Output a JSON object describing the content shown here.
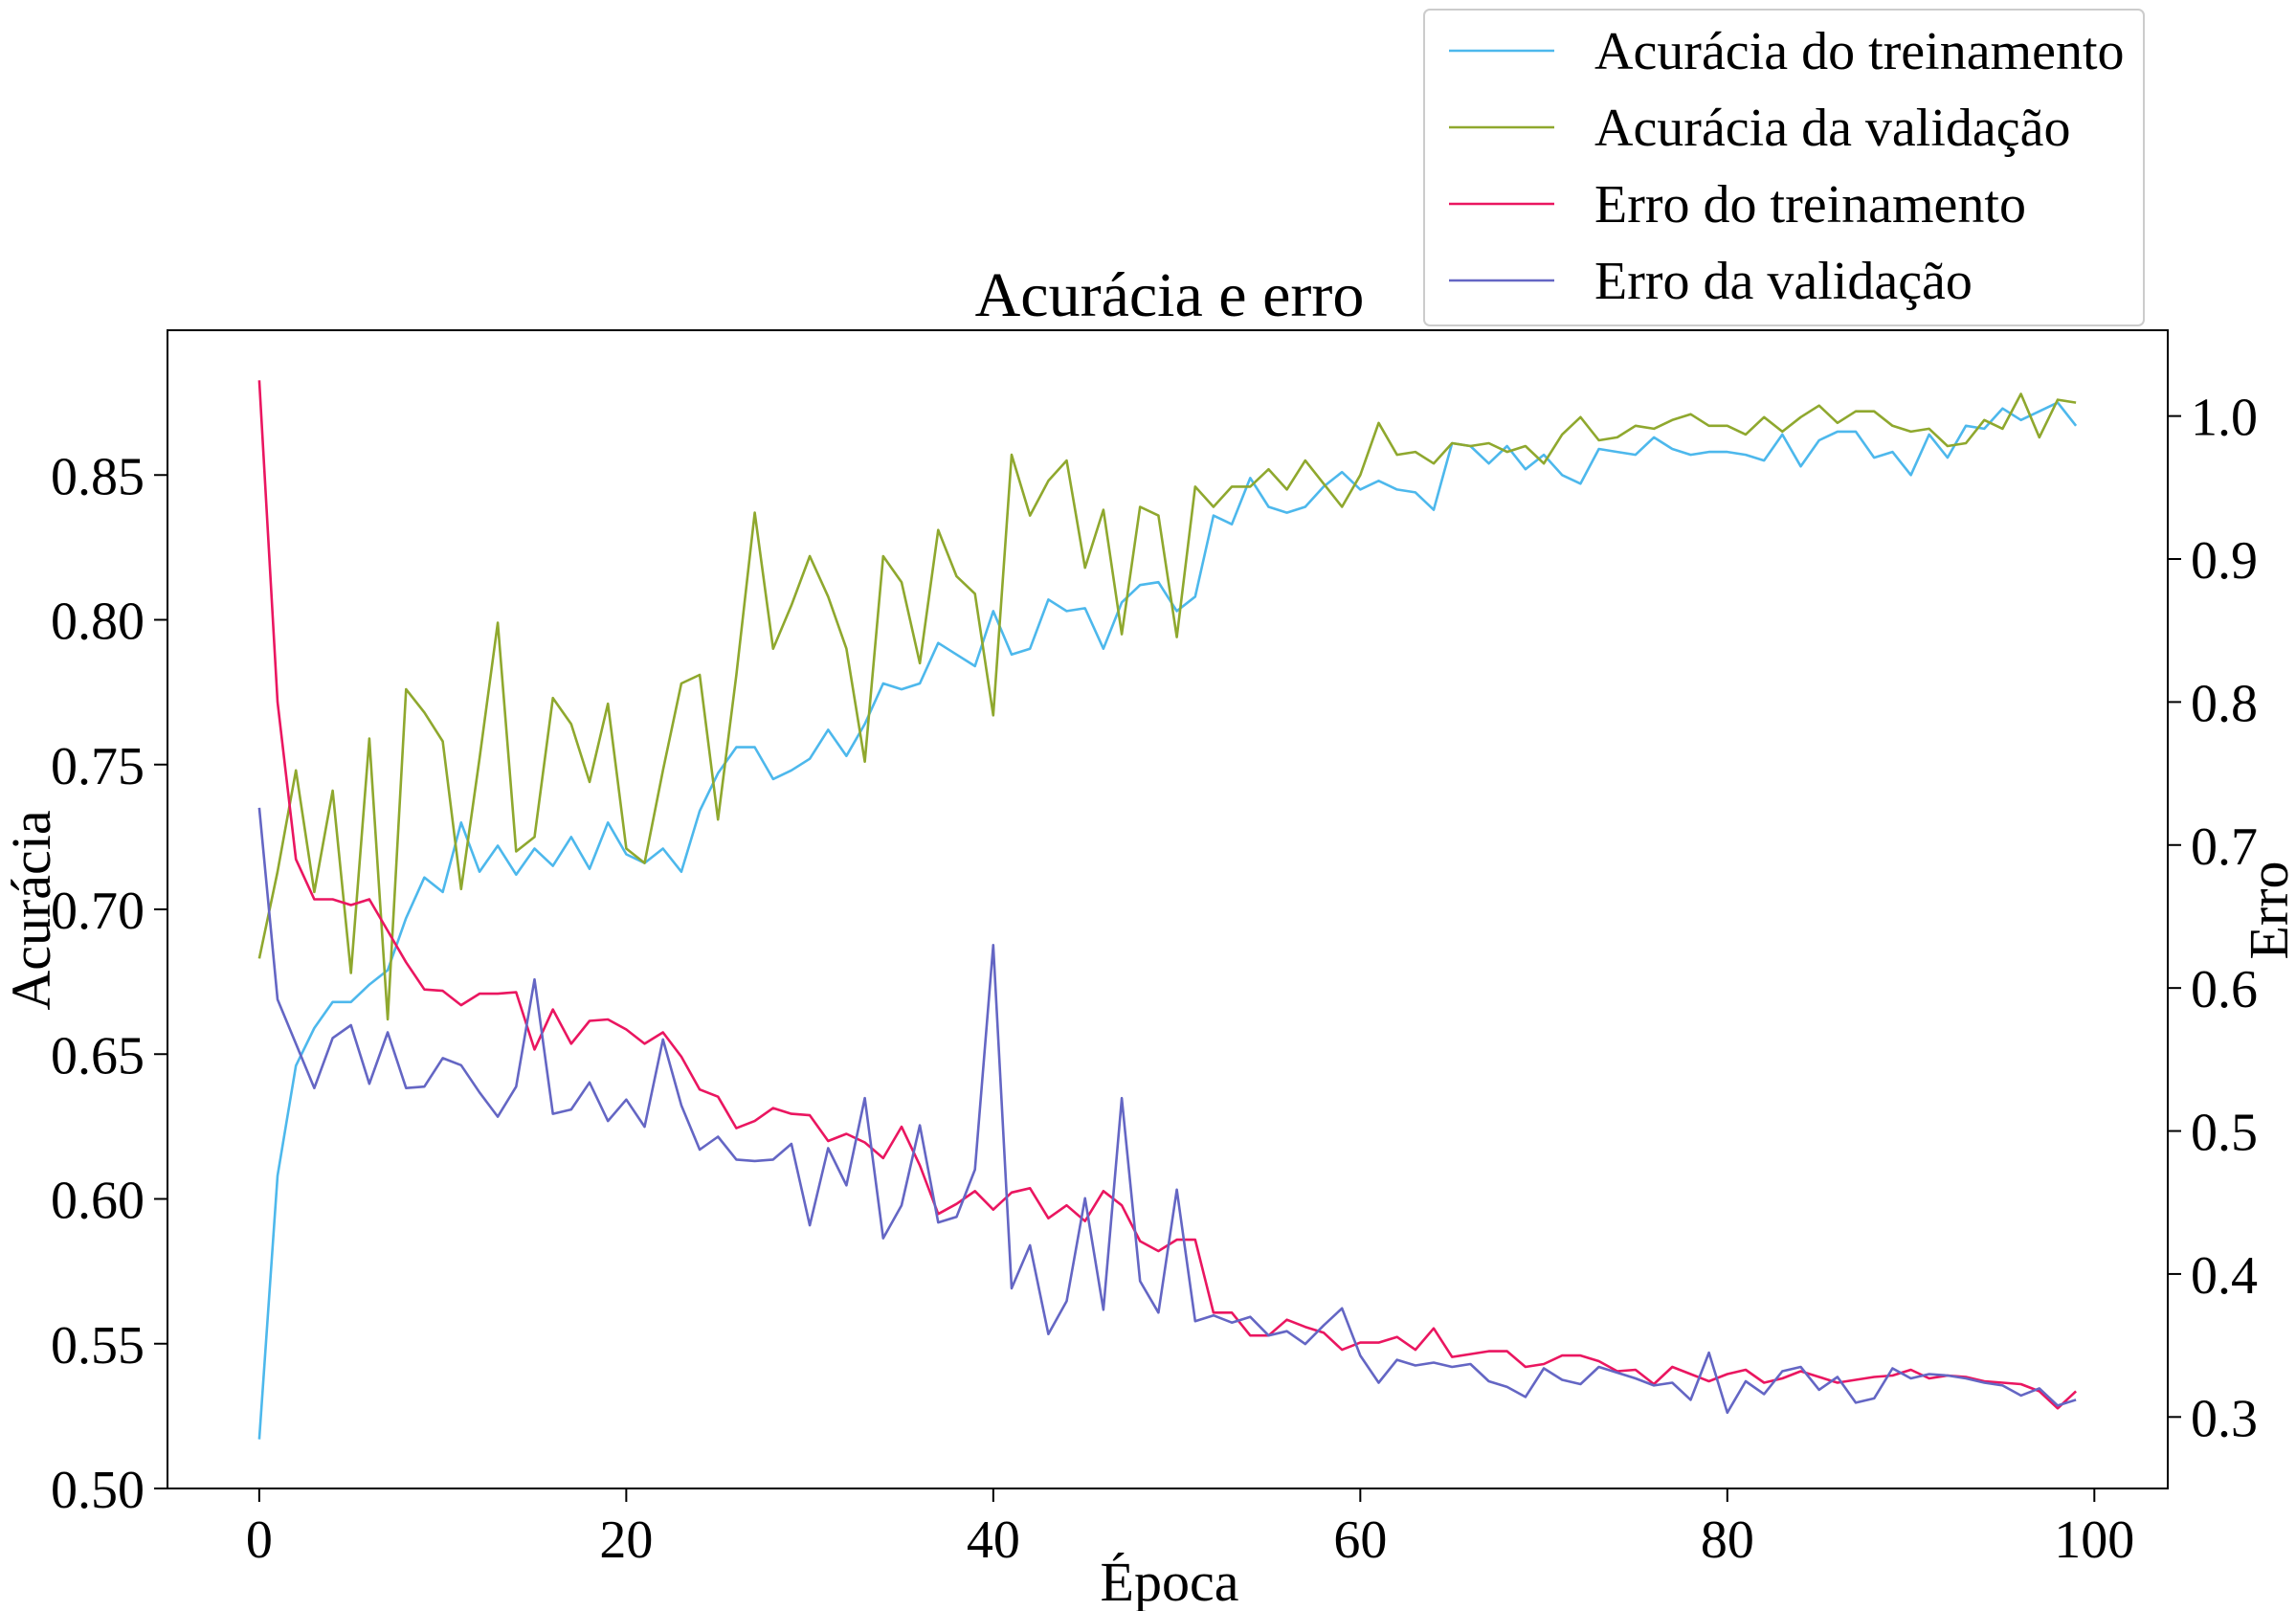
{
  "chart_data": {
    "type": "line",
    "title": "Acurácia e erro",
    "xlabel": "Época",
    "ylabel": "Acurácia",
    "y2label": "Erro",
    "xlim": [
      -5,
      104
    ],
    "ylim": [
      0.5,
      0.9
    ],
    "y2lim": [
      0.25,
      1.06
    ],
    "xticks": [
      0,
      20,
      40,
      60,
      80,
      100
    ],
    "yticks": [
      0.5,
      0.55,
      0.6,
      0.65,
      0.7,
      0.75,
      0.8,
      0.85
    ],
    "y2ticks": [
      0.3,
      0.4,
      0.5,
      0.6,
      0.7,
      0.8,
      0.9,
      1.0
    ],
    "grid": false,
    "legend_position": "top-right",
    "series": [
      {
        "name": "Acurácia do treinamento",
        "axis": "left",
        "color": "#4db8ec",
        "values": [
          0.517,
          0.608,
          0.646,
          0.659,
          0.668,
          0.668,
          0.674,
          0.679,
          0.697,
          0.711,
          0.706,
          0.73,
          0.713,
          0.722,
          0.712,
          0.721,
          0.715,
          0.725,
          0.714,
          0.73,
          0.719,
          0.716,
          0.721,
          0.713,
          0.734,
          0.747,
          0.756,
          0.756,
          0.745,
          0.748,
          0.752,
          0.762,
          0.753,
          0.764,
          0.778,
          0.776,
          0.778,
          0.792,
          0.788,
          0.784,
          0.803,
          0.788,
          0.79,
          0.807,
          0.803,
          0.804,
          0.79,
          0.806,
          0.812,
          0.813,
          0.803,
          0.808,
          0.836,
          0.833,
          0.849,
          0.839,
          0.837,
          0.839,
          0.846,
          0.851,
          0.845,
          0.848,
          0.845,
          0.844,
          0.838,
          0.861,
          0.86,
          0.854,
          0.86,
          0.852,
          0.857,
          0.85,
          0.847,
          0.859,
          0.858,
          0.857,
          0.863,
          0.859,
          0.857,
          0.858,
          0.858,
          0.857,
          0.855,
          0.864,
          0.853,
          0.862,
          0.865,
          0.865,
          0.856,
          0.858,
          0.85,
          0.864,
          0.856,
          0.867,
          0.866,
          0.873,
          0.869,
          0.872,
          0.875,
          0.867
        ]
      },
      {
        "name": "Acurácia da validação",
        "axis": "left",
        "color": "#8fa82e",
        "values": [
          0.683,
          0.713,
          0.748,
          0.706,
          0.741,
          0.678,
          0.759,
          0.662,
          0.776,
          0.768,
          0.758,
          0.707,
          0.752,
          0.799,
          0.72,
          0.725,
          0.773,
          0.764,
          0.744,
          0.771,
          0.721,
          0.716,
          0.748,
          0.778,
          0.781,
          0.731,
          0.781,
          0.837,
          0.79,
          0.805,
          0.822,
          0.808,
          0.79,
          0.751,
          0.822,
          0.813,
          0.785,
          0.831,
          0.815,
          0.809,
          0.767,
          0.857,
          0.836,
          0.848,
          0.855,
          0.818,
          0.838,
          0.795,
          0.839,
          0.836,
          0.794,
          0.846,
          0.839,
          0.846,
          0.846,
          0.852,
          0.845,
          0.855,
          0.847,
          0.839,
          0.85,
          0.868,
          0.857,
          0.858,
          0.854,
          0.861,
          0.86,
          0.861,
          0.858,
          0.86,
          0.854,
          0.864,
          0.87,
          0.862,
          0.863,
          0.867,
          0.866,
          0.869,
          0.871,
          0.867,
          0.867,
          0.864,
          0.87,
          0.865,
          0.87,
          0.874,
          0.868,
          0.872,
          0.872,
          0.867,
          0.865,
          0.866,
          0.86,
          0.861,
          0.869,
          0.866,
          0.878,
          0.863,
          0.876,
          0.875
        ]
      },
      {
        "name": "Erro do treinamento",
        "axis": "right",
        "color": "#ea1660",
        "values": [
          1.025,
          0.8,
          0.69,
          0.662,
          0.662,
          0.658,
          0.662,
          0.64,
          0.618,
          0.599,
          0.598,
          0.588,
          0.596,
          0.596,
          0.597,
          0.557,
          0.585,
          0.561,
          0.577,
          0.578,
          0.571,
          0.561,
          0.569,
          0.552,
          0.529,
          0.524,
          0.502,
          0.507,
          0.516,
          0.512,
          0.511,
          0.493,
          0.498,
          0.492,
          0.481,
          0.503,
          0.476,
          0.442,
          0.449,
          0.458,
          0.445,
          0.457,
          0.46,
          0.439,
          0.448,
          0.437,
          0.458,
          0.448,
          0.423,
          0.416,
          0.424,
          0.424,
          0.373,
          0.373,
          0.357,
          0.357,
          0.368,
          0.363,
          0.359,
          0.347,
          0.352,
          0.352,
          0.356,
          0.347,
          0.362,
          0.342,
          0.344,
          0.346,
          0.346,
          0.335,
          0.337,
          0.343,
          0.343,
          0.339,
          0.332,
          0.333,
          0.323,
          0.335,
          0.33,
          0.325,
          0.33,
          0.333,
          0.324,
          0.327,
          0.332,
          0.328,
          0.324,
          0.326,
          0.328,
          0.329,
          0.333,
          0.327,
          0.329,
          0.328,
          0.325,
          0.324,
          0.323,
          0.318,
          0.306,
          0.318
        ]
      },
      {
        "name": "Erro da validação",
        "axis": "right",
        "color": "#6466c4",
        "values": [
          0.726,
          0.592,
          0.561,
          0.53,
          0.565,
          0.574,
          0.533,
          0.569,
          0.53,
          0.531,
          0.551,
          0.546,
          0.527,
          0.51,
          0.531,
          0.606,
          0.512,
          0.515,
          0.534,
          0.507,
          0.522,
          0.503,
          0.564,
          0.518,
          0.487,
          0.496,
          0.48,
          0.479,
          0.48,
          0.491,
          0.434,
          0.488,
          0.462,
          0.523,
          0.425,
          0.448,
          0.504,
          0.436,
          0.44,
          0.473,
          0.63,
          0.39,
          0.42,
          0.358,
          0.381,
          0.453,
          0.375,
          0.523,
          0.395,
          0.373,
          0.459,
          0.367,
          0.371,
          0.366,
          0.37,
          0.357,
          0.36,
          0.351,
          0.364,
          0.376,
          0.343,
          0.324,
          0.34,
          0.336,
          0.338,
          0.335,
          0.337,
          0.325,
          0.321,
          0.314,
          0.334,
          0.326,
          0.323,
          0.335,
          0.331,
          0.327,
          0.322,
          0.324,
          0.312,
          0.345,
          0.303,
          0.325,
          0.316,
          0.332,
          0.335,
          0.319,
          0.328,
          0.31,
          0.313,
          0.334,
          0.327,
          0.33,
          0.329,
          0.327,
          0.324,
          0.322,
          0.315,
          0.32,
          0.308,
          0.312
        ]
      }
    ]
  }
}
